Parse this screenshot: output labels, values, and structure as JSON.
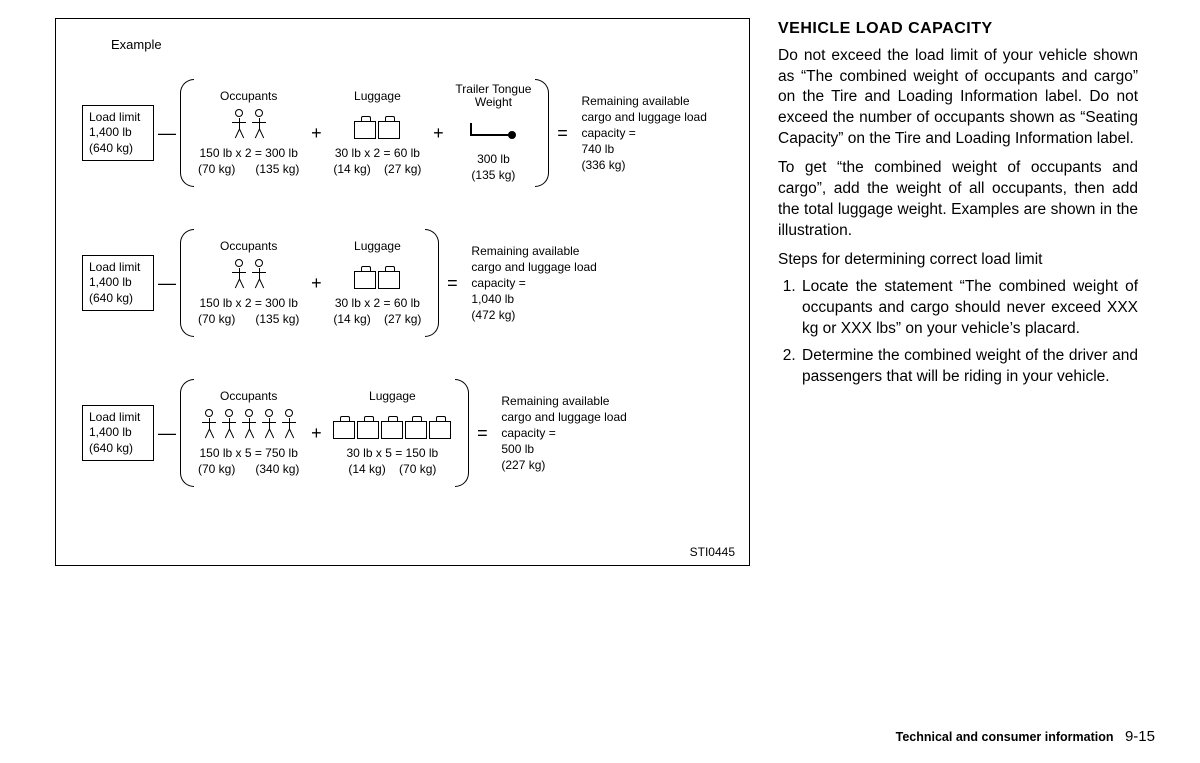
{
  "diagram": {
    "example_label": "Example",
    "figure_code": "STI0445",
    "load_limit": {
      "line1": "Load limit",
      "line2": "1,400 lb",
      "line3": "(640 kg)"
    },
    "result_label": "Remaining available cargo and luggage load capacity =",
    "headers": {
      "occupants": "Occupants",
      "luggage": "Luggage",
      "trailer": "Trailer Tongue Weight"
    },
    "rows": [
      {
        "occupants_count": 2,
        "bags_count": 2,
        "has_trailer": true,
        "occ_calc": "150 lb x 2 = 300 lb\n(70 kg)      (135 kg)",
        "bag_calc": "30 lb x 2 = 60 lb\n(14 kg)    (27 kg)",
        "trailer_calc": "300 lb\n(135 kg)",
        "result": "740 lb\n(336 kg)"
      },
      {
        "occupants_count": 2,
        "bags_count": 2,
        "has_trailer": false,
        "occ_calc": "150 lb x 2 = 300 lb\n(70 kg)      (135 kg)",
        "bag_calc": "30 lb x 2 = 60 lb\n(14 kg)    (27 kg)",
        "result": "1,040 lb\n(472 kg)"
      },
      {
        "occupants_count": 5,
        "bags_count": 5,
        "has_trailer": false,
        "occ_calc": "150 lb x 5 = 750 lb\n(70 kg)      (340 kg)",
        "bag_calc": "30 lb x 5 = 150 lb\n(14 kg)    (70 kg)",
        "result": "500 lb\n(227 kg)"
      }
    ]
  },
  "text": {
    "heading": "VEHICLE LOAD CAPACITY",
    "p1": "Do not exceed the load limit of your vehicle shown as “The combined weight of occupants and cargo” on the Tire and Loading Information label. Do not exceed the number of occupants shown as “Seating Capacity” on the Tire and Loading Information label.",
    "p2": "To get “the combined weight of occupants and cargo”, add the weight of all occupants, then add the total luggage weight. Examples are shown in the illustration.",
    "sub": "Steps for determining correct load limit",
    "li1": "Locate the statement “The combined weight of occupants and cargo should never exceed XXX kg or XXX lbs” on your vehicle’s placard.",
    "li2": "Determine the combined weight of the driver and passengers that will be riding in your vehicle."
  },
  "footer": {
    "section": "Technical and consumer information",
    "page": "9-15"
  }
}
